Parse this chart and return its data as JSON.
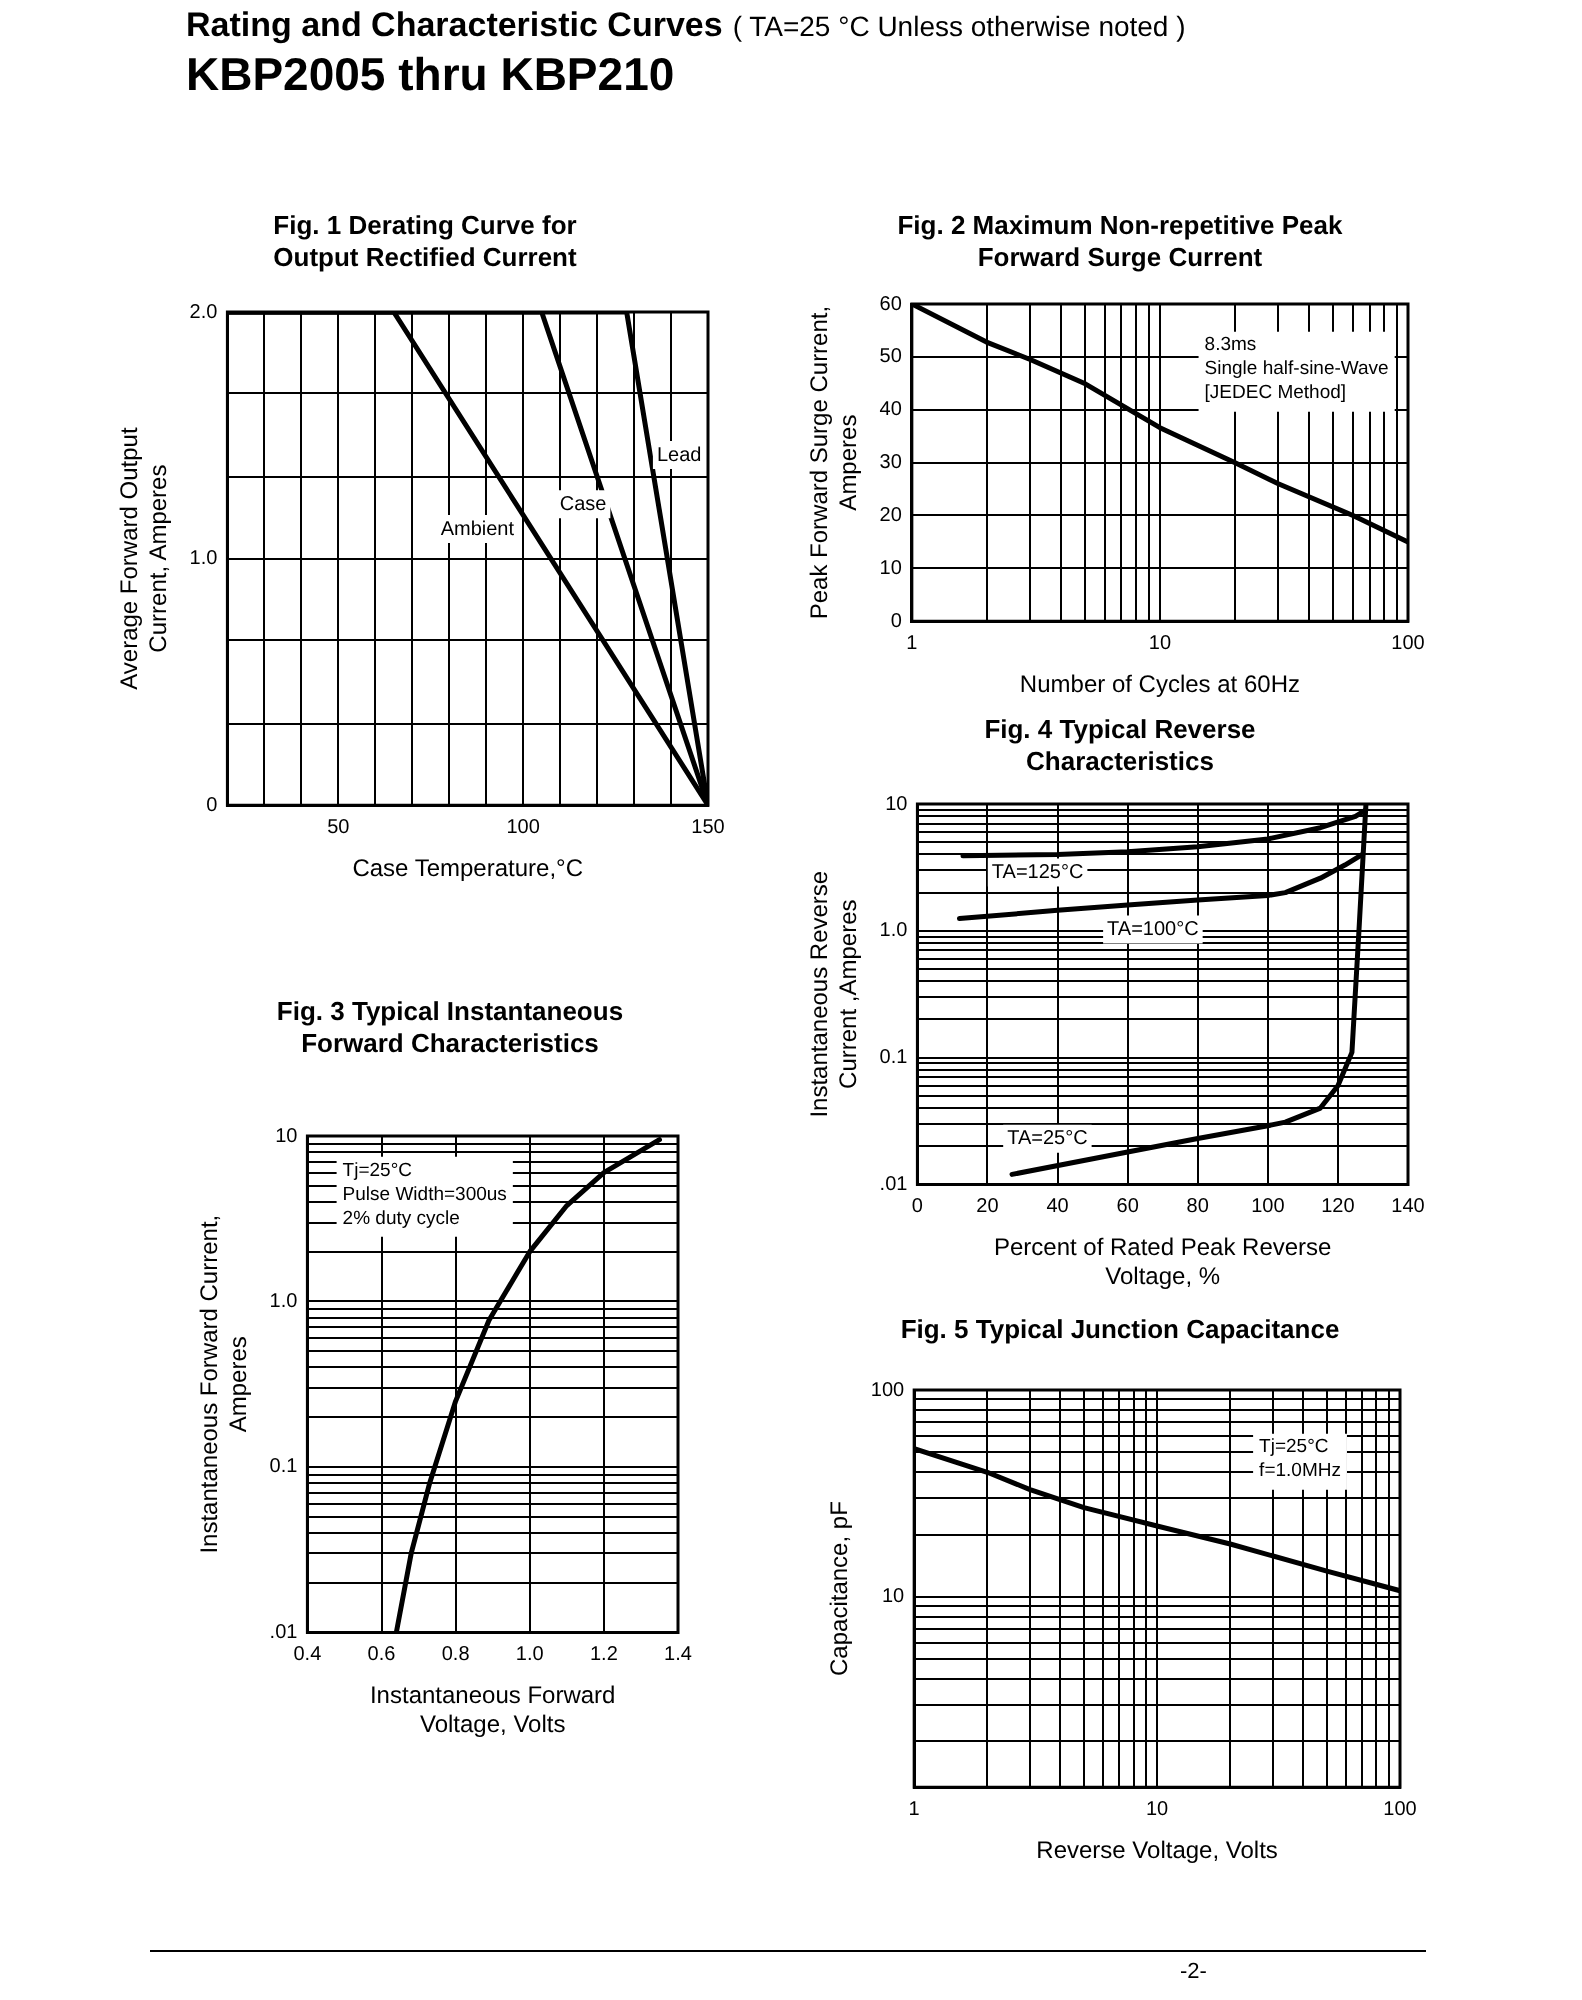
{
  "chart_data": [
    {
      "type": "other",
      "title": "Rating and Characteristic Curves",
      "subtitle": "KBP2005 thru KBP210",
      "annotations": [
        "( TA=25 °C Unless otherwise noted )",
        "-2-"
      ]
    },
    {
      "type": "line",
      "title": "Fig. 1 Derating Curve for Output Rectified Current",
      "xlabel": "Case Temperature,°C",
      "ylabel": "Average Forward Output Current, Amperes",
      "series": [
        {
          "name": "Ambient",
          "color": "#000000",
          "x": [
            20,
            65,
            150
          ],
          "values": [
            2.0,
            2.0,
            0
          ]
        },
        {
          "name": "Case",
          "color": "#000000",
          "x": [
            20,
            105,
            150
          ],
          "values": [
            2.0,
            2.0,
            0
          ]
        },
        {
          "name": "Lead",
          "color": "#000000",
          "x": [
            20,
            128,
            150
          ],
          "values": [
            2.0,
            2.0,
            0
          ]
        }
      ],
      "xlim": [
        20,
        150
      ],
      "xticks": [
        {
          "value": 20,
          "label": null
        },
        {
          "value": 30,
          "label": null
        },
        {
          "value": 40,
          "label": null
        },
        50,
        {
          "value": 60,
          "label": null
        },
        {
          "value": 70,
          "label": null
        },
        {
          "value": 80,
          "label": null
        },
        {
          "value": 90,
          "label": null
        },
        100,
        {
          "value": 110,
          "label": null
        },
        {
          "value": 120,
          "label": null
        },
        {
          "value": 130,
          "label": null
        },
        {
          "value": 140,
          "label": null
        },
        150
      ],
      "ylim": [
        0,
        2.0
      ],
      "yticks": [
        0,
        {
          "value": 0.33,
          "label": null
        },
        {
          "value": 0.67,
          "label": null
        },
        {
          "value": 1,
          "label": "1.0"
        },
        {
          "value": 1.33,
          "label": null
        },
        {
          "value": 1.67,
          "label": null
        },
        {
          "value": 2,
          "label": "2.0"
        }
      ],
      "grid": true,
      "marker": "none"
    },
    {
      "type": "line",
      "title": "Fig. 2 Maximum Non-repetitive Peak Forward Surge Current",
      "xlabel": "Number of Cycles at 60Hz",
      "ylabel": "Peak Forward Surge Current, Amperes",
      "series": [
        {
          "color": "#000000",
          "x": [
            1,
            2,
            3,
            5,
            10,
            20,
            30,
            60,
            100
          ],
          "values": [
            60,
            52.8,
            49.5,
            44.9,
            36.6,
            30,
            26,
            20,
            15
          ]
        }
      ],
      "xlim": [
        1,
        100
      ],
      "xticks": [
        1,
        {
          "value": 2,
          "label": null
        },
        {
          "value": 3,
          "label": null
        },
        {
          "value": 4,
          "label": null
        },
        {
          "value": 5,
          "label": null
        },
        {
          "value": 6,
          "label": null
        },
        {
          "value": 7,
          "label": null
        },
        {
          "value": 8,
          "label": null
        },
        {
          "value": 9,
          "label": null
        },
        10,
        {
          "value": 20,
          "label": null
        },
        {
          "value": 30,
          "label": null
        },
        {
          "value": 40,
          "label": null
        },
        {
          "value": 50,
          "label": null
        },
        {
          "value": 60,
          "label": null
        },
        {
          "value": 70,
          "label": null
        },
        {
          "value": 80,
          "label": null
        },
        {
          "value": 90,
          "label": null
        },
        100
      ],
      "ylim": [
        0,
        60
      ],
      "yticks": [
        0,
        10,
        20,
        30,
        40,
        50,
        60
      ],
      "log": "x",
      "grid": true,
      "marker": "none",
      "annotations": [
        "8.3ms",
        "Single half-sine-Wave",
        "[JEDEC Method]"
      ]
    },
    {
      "type": "line",
      "title": "Fig. 4 Typical Reverse Characteristics",
      "xlabel": "Percent of Rated Peak Reverse Voltage, %",
      "ylabel": "Instantaneous Reverse Current ,Amperes",
      "series": [
        {
          "name": "TA=125°C",
          "color": "#000000",
          "x": [
            13,
            40,
            60,
            80,
            100,
            115,
            125,
            128
          ],
          "values": [
            3.9,
            4.0,
            4.2,
            4.6,
            5.3,
            6.5,
            8,
            9
          ]
        },
        {
          "name": "TA=100°C",
          "color": "#000000",
          "x": [
            12,
            40,
            60,
            80,
            100,
            105,
            115,
            122,
            127
          ],
          "values": [
            1.25,
            1.45,
            1.6,
            1.75,
            1.9,
            2.0,
            2.6,
            3.3,
            4.0
          ]
        },
        {
          "name": "TA=25°C",
          "color": "#000000",
          "x": [
            27,
            60,
            80,
            100,
            105,
            115,
            120,
            124,
            126,
            128
          ],
          "values": [
            0.012,
            0.018,
            0.023,
            0.029,
            0.031,
            0.04,
            0.06,
            0.11,
            1.0,
            10
          ]
        }
      ],
      "xlim": [
        0,
        140
      ],
      "xticks": [
        0,
        20,
        40,
        60,
        80,
        100,
        120,
        140
      ],
      "ylim": [
        0.01,
        10
      ],
      "yticks": [
        {
          "value": 0.01,
          "label": ".01"
        },
        {
          "value": 0.02,
          "label": null
        },
        {
          "value": 0.03,
          "label": null
        },
        {
          "value": 0.04,
          "label": null
        },
        {
          "value": 0.05,
          "label": null
        },
        {
          "value": 0.06,
          "label": null
        },
        {
          "value": 0.07,
          "label": null
        },
        {
          "value": 0.08,
          "label": null
        },
        {
          "value": 0.09,
          "label": null
        },
        {
          "value": 0.1,
          "label": "0.1"
        },
        {
          "value": 0.2,
          "label": null
        },
        {
          "value": 0.3,
          "label": null
        },
        {
          "value": 0.4,
          "label": null
        },
        {
          "value": 0.5,
          "label": null
        },
        {
          "value": 0.6,
          "label": null
        },
        {
          "value": 0.7,
          "label": null
        },
        {
          "value": 0.8,
          "label": null
        },
        {
          "value": 0.9,
          "label": null
        },
        {
          "value": 1,
          "label": "1.0"
        },
        {
          "value": 2,
          "label": null
        },
        {
          "value": 3,
          "label": null
        },
        {
          "value": 4,
          "label": null
        },
        {
          "value": 5,
          "label": null
        },
        {
          "value": 6,
          "label": null
        },
        {
          "value": 7,
          "label": null
        },
        {
          "value": 8,
          "label": null
        },
        {
          "value": 9,
          "label": null
        },
        10
      ],
      "log": "y",
      "grid": true,
      "marker": "none"
    },
    {
      "type": "line",
      "title": "Fig. 3 Typical Instantaneous Forward Characteristics",
      "xlabel": "Instantaneous Forward Voltage, Volts",
      "ylabel": "Instantaneous Forward Current, Amperes",
      "series": [
        {
          "color": "#000000",
          "x": [
            0.64,
            0.68,
            0.73,
            0.8,
            0.89,
            1.0,
            1.1,
            1.2,
            1.35
          ],
          "values": [
            0.01,
            0.03,
            0.08,
            0.25,
            0.77,
            2.0,
            3.8,
            6.0,
            9.5
          ]
        }
      ],
      "xlim": [
        0.4,
        1.4
      ],
      "xticks": [
        0.4,
        0.6,
        0.8,
        {
          "value": 1,
          "label": "1.0"
        },
        1.2,
        1.4
      ],
      "ylim": [
        0.01,
        10
      ],
      "yticks": [
        {
          "value": 0.01,
          "label": ".01"
        },
        {
          "value": 0.02,
          "label": null
        },
        {
          "value": 0.03,
          "label": null
        },
        {
          "value": 0.04,
          "label": null
        },
        {
          "value": 0.05,
          "label": null
        },
        {
          "value": 0.06,
          "label": null
        },
        {
          "value": 0.07,
          "label": null
        },
        {
          "value": 0.08,
          "label": null
        },
        {
          "value": 0.09,
          "label": null
        },
        {
          "value": 0.1,
          "label": "0.1"
        },
        {
          "value": 0.2,
          "label": null
        },
        {
          "value": 0.3,
          "label": null
        },
        {
          "value": 0.4,
          "label": null
        },
        {
          "value": 0.5,
          "label": null
        },
        {
          "value": 0.6,
          "label": null
        },
        {
          "value": 0.7,
          "label": null
        },
        {
          "value": 0.8,
          "label": null
        },
        {
          "value": 0.9,
          "label": null
        },
        {
          "value": 1,
          "label": "1.0"
        },
        {
          "value": 2,
          "label": null
        },
        {
          "value": 3,
          "label": null
        },
        {
          "value": 4,
          "label": null
        },
        {
          "value": 5,
          "label": null
        },
        {
          "value": 6,
          "label": null
        },
        {
          "value": 7,
          "label": null
        },
        {
          "value": 8,
          "label": null
        },
        {
          "value": 9,
          "label": null
        },
        10
      ],
      "log": "y",
      "grid": true,
      "marker": "none",
      "annotations": [
        "Tj=25°C",
        "Pulse Width=300us",
        "2% duty cycle"
      ]
    },
    {
      "type": "line",
      "title": "Fig. 5 Typical Junction Capacitance",
      "xlabel": "Reverse Voltage, Volts",
      "ylabel": "Capacitance, pF",
      "series": [
        {
          "color": "#000000",
          "x": [
            1,
            2,
            3,
            5,
            10,
            20,
            50,
            100
          ],
          "values": [
            52,
            40,
            33,
            27,
            22,
            18,
            13.3,
            10.7
          ]
        }
      ],
      "xlim": [
        1,
        100
      ],
      "xticks": [
        1,
        {
          "value": 2,
          "label": null
        },
        {
          "value": 3,
          "label": null
        },
        {
          "value": 4,
          "label": null
        },
        {
          "value": 5,
          "label": null
        },
        {
          "value": 6,
          "label": null
        },
        {
          "value": 7,
          "label": null
        },
        {
          "value": 8,
          "label": null
        },
        {
          "value": 9,
          "label": null
        },
        10,
        {
          "value": 20,
          "label": null
        },
        {
          "value": 30,
          "label": null
        },
        {
          "value": 40,
          "label": null
        },
        {
          "value": 50,
          "label": null
        },
        {
          "value": 60,
          "label": null
        },
        {
          "value": 70,
          "label": null
        },
        {
          "value": 80,
          "label": null
        },
        {
          "value": 90,
          "label": null
        },
        100
      ],
      "ylim": [
        1.2,
        100
      ],
      "yticks": [
        {
          "value": 2,
          "label": null
        },
        {
          "value": 3,
          "label": null
        },
        {
          "value": 4,
          "label": null
        },
        {
          "value": 5,
          "label": null
        },
        {
          "value": 6,
          "label": null
        },
        {
          "value": 7,
          "label": null
        },
        {
          "value": 8,
          "label": null
        },
        {
          "value": 9,
          "label": null
        },
        10,
        {
          "value": 20,
          "label": null
        },
        {
          "value": 30,
          "label": null
        },
        {
          "value": 40,
          "label": null
        },
        {
          "value": 50,
          "label": null
        },
        {
          "value": 60,
          "label": null
        },
        {
          "value": 70,
          "label": null
        },
        {
          "value": 80,
          "label": null
        },
        {
          "value": 90,
          "label": null
        },
        100
      ],
      "log": "xy",
      "grid": true,
      "marker": "none",
      "annotations": [
        "Tj=25°C",
        "f=1.0MHz"
      ]
    }
  ]
}
